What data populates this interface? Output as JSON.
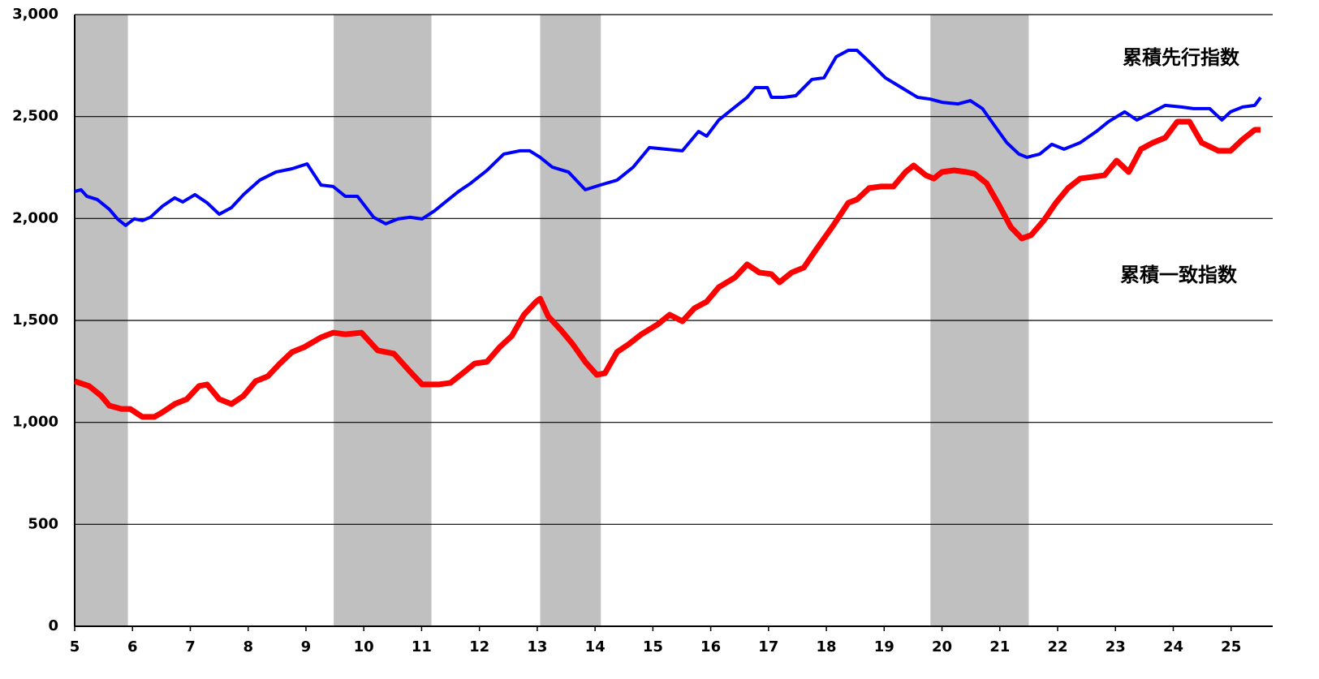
{
  "chart_data": {
    "type": "line",
    "xlim": [
      5,
      25.72
    ],
    "xticks": [
      5,
      6,
      7,
      8,
      9,
      10,
      11,
      12,
      13,
      14,
      15,
      16,
      17,
      18,
      19,
      20,
      21,
      22,
      23,
      24,
      25
    ],
    "ylim": [
      0,
      3000
    ],
    "yticks": [
      0,
      500,
      {
        "value": 1000,
        "label": "1,000"
      },
      {
        "value": 1500,
        "label": "1,500"
      },
      {
        "value": 2000,
        "label": "2,000"
      },
      {
        "value": 2500,
        "label": "2,500"
      },
      {
        "value": 3000,
        "label": "3,000"
      }
    ],
    "grid": true,
    "shaded_regions": [
      [
        5,
        5.92
      ],
      [
        9.48,
        11.17
      ],
      [
        13.05,
        14.1
      ],
      [
        19.8,
        21.5
      ]
    ],
    "shade_color": "#c0c0c0",
    "series": [
      {
        "name": "累積先行指数",
        "color": "#0000ff",
        "x": [
          5.0,
          5.11,
          5.21,
          5.39,
          5.6,
          5.74,
          5.88,
          6.03,
          6.17,
          6.31,
          6.52,
          6.73,
          6.87,
          7.08,
          7.29,
          7.5,
          7.71,
          7.92,
          8.2,
          8.48,
          8.76,
          9.02,
          9.26,
          9.47,
          9.68,
          9.89,
          10.17,
          10.38,
          10.59,
          10.8,
          11.01,
          11.22,
          11.43,
          11.64,
          11.85,
          12.13,
          12.42,
          12.7,
          12.87,
          13.05,
          13.26,
          13.54,
          13.83,
          14.1,
          14.38,
          14.66,
          14.94,
          15.22,
          15.51,
          15.79,
          15.93,
          16.14,
          16.35,
          16.63,
          16.77,
          16.98,
          17.05,
          17.26,
          17.47,
          17.75,
          17.96,
          18.17,
          18.38,
          18.53,
          18.74,
          19.02,
          19.3,
          19.58,
          19.79,
          20.0,
          20.28,
          20.49,
          20.7,
          20.9,
          21.12,
          21.33,
          21.47,
          21.69,
          21.9,
          22.11,
          22.39,
          22.67,
          22.88,
          23.16,
          23.37,
          23.65,
          23.86,
          24.14,
          24.35,
          24.63,
          24.84,
          24.99,
          25.2,
          25.41,
          25.51
        ],
        "values": [
          2133,
          2141,
          2109,
          2093,
          2045,
          1998,
          1966,
          1998,
          1990,
          2006,
          2061,
          2101,
          2081,
          2117,
          2077,
          2021,
          2053,
          2117,
          2188,
          2228,
          2244,
          2268,
          2164,
          2157,
          2109,
          2109,
          2006,
          1974,
          1998,
          2006,
          1998,
          2037,
          2085,
          2133,
          2173,
          2236,
          2316,
          2332,
          2332,
          2300,
          2252,
          2228,
          2141,
          2165,
          2188,
          2252,
          2348,
          2340,
          2332,
          2427,
          2404,
          2483,
          2531,
          2594,
          2642,
          2642,
          2594,
          2594,
          2602,
          2682,
          2690,
          2793,
          2825,
          2825,
          2769,
          2690,
          2642,
          2594,
          2586,
          2570,
          2562,
          2578,
          2539,
          2459,
          2372,
          2316,
          2300,
          2316,
          2364,
          2340,
          2372,
          2427,
          2475,
          2523,
          2483,
          2523,
          2555,
          2547,
          2539,
          2539,
          2483,
          2523,
          2547,
          2555,
          2594
        ]
      },
      {
        "name": "累積一致指数",
        "color": "#ff0000",
        "x": [
          5.0,
          5.25,
          5.46,
          5.6,
          5.81,
          5.96,
          6.17,
          6.38,
          6.52,
          6.73,
          6.94,
          7.15,
          7.29,
          7.5,
          7.71,
          7.92,
          8.13,
          8.34,
          8.55,
          8.76,
          8.97,
          9.26,
          9.47,
          9.68,
          9.96,
          10.24,
          10.52,
          10.8,
          11.01,
          11.29,
          11.5,
          11.71,
          11.92,
          12.13,
          12.35,
          12.56,
          12.77,
          12.98,
          13.05,
          13.19,
          13.4,
          13.61,
          13.83,
          14.03,
          14.17,
          14.38,
          14.59,
          14.8,
          15.08,
          15.29,
          15.51,
          15.72,
          15.93,
          16.14,
          16.42,
          16.63,
          16.84,
          17.05,
          17.19,
          17.4,
          17.61,
          17.82,
          18.1,
          18.38,
          18.53,
          18.74,
          18.95,
          19.16,
          19.37,
          19.51,
          19.72,
          19.86,
          20.0,
          20.21,
          20.42,
          20.56,
          20.77,
          20.98,
          21.19,
          21.38,
          21.54,
          21.76,
          21.97,
          22.18,
          22.39,
          22.6,
          22.81,
          23.02,
          23.23,
          23.44,
          23.65,
          23.86,
          24.07,
          24.28,
          24.49,
          24.78,
          24.99,
          25.2,
          25.41,
          25.51
        ],
        "values": [
          1202,
          1178,
          1130,
          1082,
          1066,
          1066,
          1027,
          1027,
          1050,
          1090,
          1114,
          1178,
          1186,
          1114,
          1090,
          1130,
          1202,
          1226,
          1289,
          1345,
          1369,
          1417,
          1440,
          1432,
          1440,
          1353,
          1337,
          1249,
          1186,
          1186,
          1194,
          1241,
          1289,
          1297,
          1369,
          1424,
          1528,
          1592,
          1607,
          1520,
          1456,
          1385,
          1297,
          1233,
          1241,
          1345,
          1385,
          1432,
          1480,
          1528,
          1496,
          1560,
          1592,
          1663,
          1711,
          1775,
          1735,
          1727,
          1687,
          1735,
          1759,
          1846,
          1958,
          2077,
          2093,
          2149,
          2157,
          2157,
          2228,
          2260,
          2212,
          2196,
          2228,
          2236,
          2228,
          2220,
          2173,
          2069,
          1958,
          1902,
          1918,
          1990,
          2077,
          2149,
          2196,
          2204,
          2212,
          2284,
          2228,
          2340,
          2372,
          2396,
          2475,
          2475,
          2372,
          2332,
          2332,
          2388,
          2435,
          2435
        ]
      }
    ]
  }
}
